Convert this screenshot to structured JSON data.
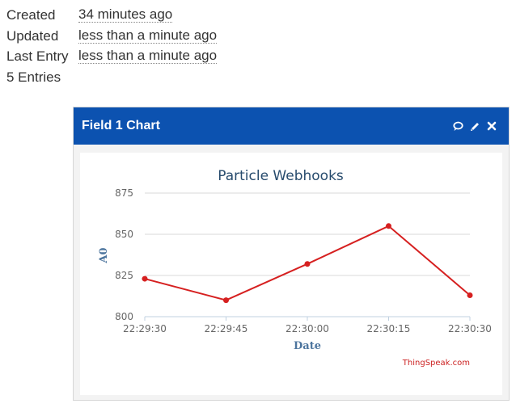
{
  "channel_info": {
    "rows": [
      {
        "label": "Created",
        "value": "34 minutes ago"
      },
      {
        "label": "Updated",
        "value": "less than a minute ago"
      },
      {
        "label": "Last Entry",
        "value": "less than a minute ago"
      }
    ],
    "entries": "5 Entries"
  },
  "panel": {
    "title": "Field 1 Chart",
    "header_color": "#0c52b0",
    "tools": [
      "comment-icon",
      "pencil-icon",
      "close-icon"
    ]
  },
  "chart_data": {
    "type": "line",
    "title": "Particle Webhooks",
    "xlabel": "Date",
    "ylabel": "A0",
    "credit": "ThingSpeak.com",
    "x": [
      "22:29:30",
      "22:29:45",
      "22:30:00",
      "22:30:15",
      "22:30:30"
    ],
    "y_ticks": [
      800,
      825,
      850,
      875
    ],
    "ylim": [
      800,
      875
    ],
    "grid": true,
    "line_color": "#d62020",
    "series": [
      {
        "values": [
          823,
          810,
          832,
          855,
          813
        ]
      }
    ]
  }
}
